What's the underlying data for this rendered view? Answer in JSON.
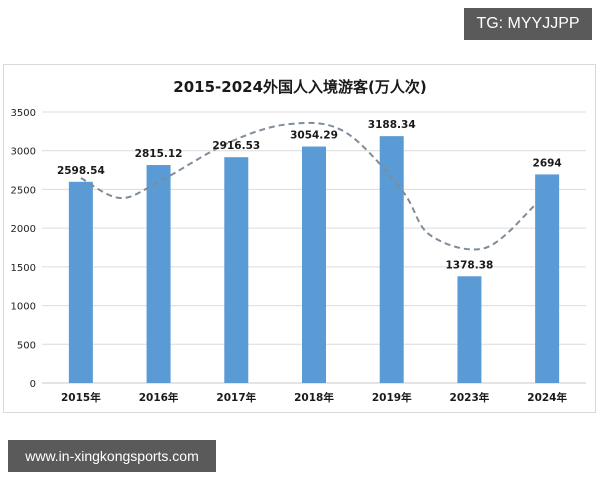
{
  "badges": {
    "top_right": "TG: MYYJJPP",
    "bottom_left": "www.in-xingkongsports.com"
  },
  "chart_data": {
    "type": "bar",
    "title": "2015-2024外国人入境游客(万人次)",
    "xlabel": "",
    "ylabel": "",
    "categories": [
      "2015年",
      "2016年",
      "2017年",
      "2018年",
      "2019年",
      "2023年",
      "2024年"
    ],
    "values": [
      2598.54,
      2815.12,
      2916.53,
      3054.29,
      3188.34,
      1378.38,
      2694
    ],
    "value_labels": [
      "2598.54",
      "2815.12",
      "2916.53",
      "3054.29",
      "3188.34",
      "1378.38",
      "2694"
    ],
    "ylim": [
      0,
      3500
    ],
    "yticks": [
      0,
      500,
      1000,
      1500,
      2000,
      2500,
      3000,
      3500
    ],
    "ytick_labels": [
      "0",
      "500",
      "1000",
      "1500",
      "2000",
      "2500",
      "3000",
      "3500"
    ],
    "grid": true,
    "legend": null,
    "bar_color": "#5b9bd5",
    "trendline": {
      "style": "dashed",
      "color": "#7f8c99"
    }
  }
}
